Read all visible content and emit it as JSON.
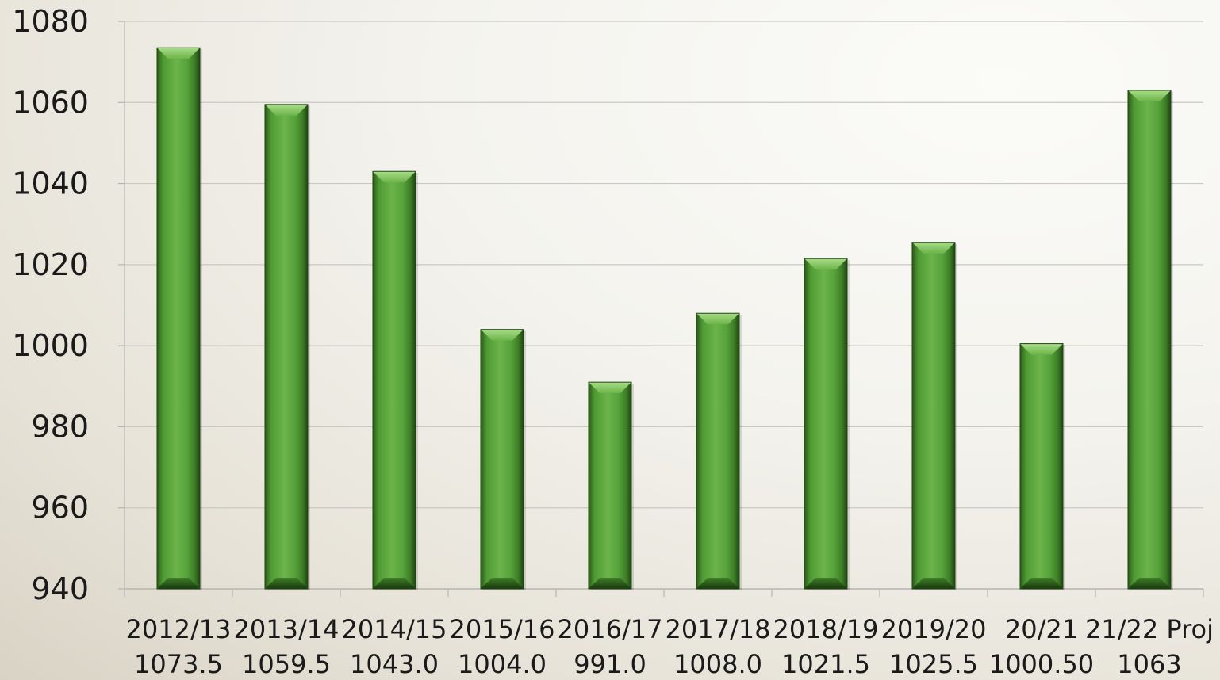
{
  "chart_data": {
    "type": "bar",
    "title": "",
    "xlabel": "",
    "ylabel": "",
    "ylim": [
      940,
      1080
    ],
    "yticks": [
      "940",
      "960",
      "980",
      "1000",
      "1020",
      "1040",
      "1060",
      "1080"
    ],
    "grid": true,
    "legend": "none",
    "categories": [
      "2012/13",
      "2013/14",
      "2014/15",
      "2015/16",
      "2016/17",
      "2017/18",
      "2018/19",
      "2019/20",
      "20/21",
      "21/22 Proj"
    ],
    "value_labels": [
      "1073.5",
      "1059.5",
      "1043.0",
      "1004.0",
      "991.0",
      "1008.0",
      "1021.5",
      "1025.5",
      "1000.50",
      "1063"
    ],
    "values": [
      1073.5,
      1059.5,
      1043.0,
      1004.0,
      991.0,
      1008.0,
      1021.5,
      1025.5,
      1000.5,
      1063
    ],
    "colors": {
      "bar_light": "#6cb44a",
      "bar_mid": "#4e9a33",
      "bar_dark": "#1f4512",
      "gridline": "#c9c9c3",
      "axis": "#b5b5af"
    }
  }
}
